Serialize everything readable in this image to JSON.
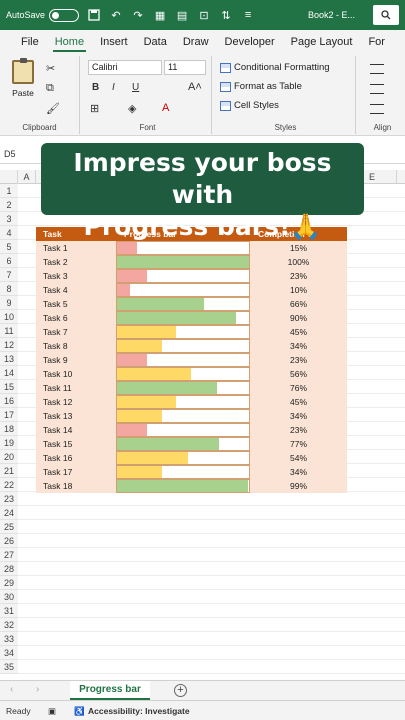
{
  "titlebar": {
    "autosave": "AutoSave",
    "doc_name": "Book2 - E..."
  },
  "tabs": [
    "File",
    "Home",
    "Insert",
    "Data",
    "Draw",
    "Developer",
    "Page Layout",
    "For"
  ],
  "ribbon": {
    "paste": "Paste",
    "clipboard_label": "Clipboard",
    "font_name": "Calibri",
    "font_size": "11",
    "font_label": "Font",
    "bold": "B",
    "italic": "I",
    "underline": "U",
    "conditional_formatting": "Conditional Formatting",
    "format_as_table": "Format as Table",
    "cell_styles": "Cell Styles",
    "styles_label": "Styles",
    "alignment_label": "Align"
  },
  "formula_bar": {
    "namebox": "D5"
  },
  "caption": {
    "line1": "Impress your boss with",
    "line2": "Progress bars!🙏"
  },
  "columns": [
    "A",
    "E"
  ],
  "row_numbers": [
    "1",
    "2",
    "3",
    "4",
    "5",
    "6",
    "7",
    "8",
    "9",
    "10",
    "11",
    "12",
    "13",
    "14",
    "15",
    "16",
    "17",
    "18",
    "19",
    "20",
    "21",
    "22",
    "23",
    "24",
    "25",
    "26",
    "27",
    "28",
    "29",
    "30",
    "31",
    "32",
    "33",
    "34",
    "35"
  ],
  "table": {
    "headers": {
      "task": "Task",
      "bar": "Progress bar",
      "pct": "Completion %"
    },
    "rows": [
      {
        "task": "Task 1",
        "pct": "15%",
        "value": 15
      },
      {
        "task": "Task 2",
        "pct": "100%",
        "value": 100
      },
      {
        "task": "Task 3",
        "pct": "23%",
        "value": 23
      },
      {
        "task": "Task 4",
        "pct": "10%",
        "value": 10
      },
      {
        "task": "Task 5",
        "pct": "66%",
        "value": 66
      },
      {
        "task": "Task 6",
        "pct": "90%",
        "value": 90
      },
      {
        "task": "Task 7",
        "pct": "45%",
        "value": 45
      },
      {
        "task": "Task 8",
        "pct": "34%",
        "value": 34
      },
      {
        "task": "Task 9",
        "pct": "23%",
        "value": 23
      },
      {
        "task": "Task 10",
        "pct": "56%",
        "value": 56
      },
      {
        "task": "Task 11",
        "pct": "76%",
        "value": 76
      },
      {
        "task": "Task 12",
        "pct": "45%",
        "value": 45
      },
      {
        "task": "Task 13",
        "pct": "34%",
        "value": 34
      },
      {
        "task": "Task 14",
        "pct": "23%",
        "value": 23
      },
      {
        "task": "Task 15",
        "pct": "77%",
        "value": 77
      },
      {
        "task": "Task 16",
        "pct": "54%",
        "value": 54
      },
      {
        "task": "Task 17",
        "pct": "34%",
        "value": 34
      },
      {
        "task": "Task 18",
        "pct": "99%",
        "value": 99
      }
    ]
  },
  "colors": {
    "accent": "#217346",
    "header": "#c55a11",
    "row_bg": "#fbe4d5",
    "low": "#f4a7a0",
    "mid": "#ffd966",
    "high": "#a9d18e"
  },
  "sheet_tab": "Progress bar",
  "status": {
    "ready": "Ready",
    "accessibility": "Accessibility: Investigate"
  }
}
